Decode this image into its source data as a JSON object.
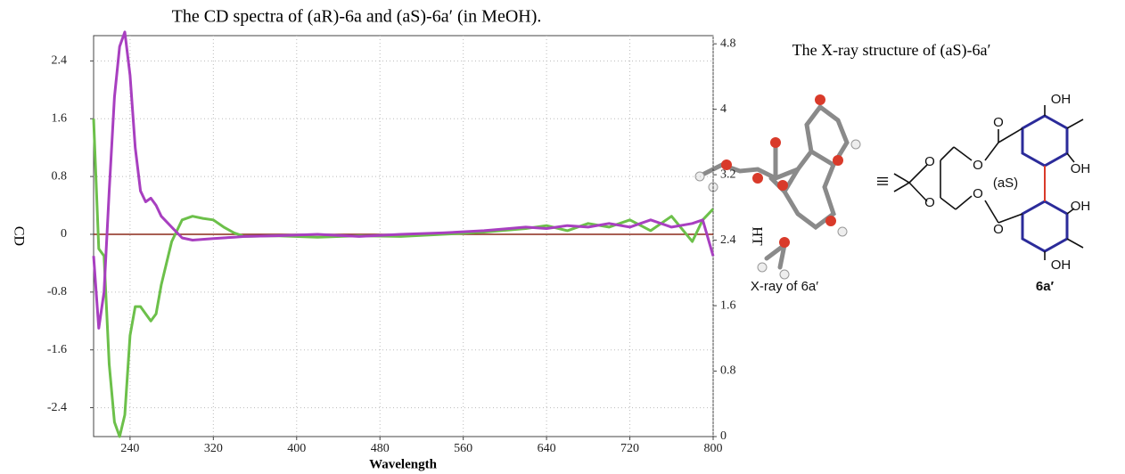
{
  "chart_data": {
    "type": "line",
    "title": "The CD spectra of (aR)-6a and (aS)-6a′ (in MeOH).",
    "x_label": "Wavelength",
    "y_label": "CD",
    "y2_label": "HT",
    "x": [
      205,
      210,
      215,
      220,
      225,
      230,
      235,
      240,
      245,
      250,
      255,
      260,
      265,
      270,
      280,
      290,
      300,
      310,
      320,
      330,
      340,
      350,
      380,
      420,
      460,
      500,
      540,
      580,
      620,
      640,
      660,
      680,
      700,
      720,
      740,
      760,
      780,
      790,
      800
    ],
    "series": [
      {
        "color": "#6cc04a",
        "values": [
          1.6,
          -0.2,
          -0.3,
          -1.8,
          -2.6,
          -2.8,
          -2.5,
          -1.4,
          -1.0,
          -1.0,
          -1.1,
          -1.2,
          -1.1,
          -0.7,
          -0.1,
          0.2,
          0.25,
          0.22,
          0.2,
          0.1,
          0.02,
          -0.03,
          -0.02,
          -0.04,
          -0.02,
          -0.03,
          0.0,
          0.03,
          0.08,
          0.12,
          0.05,
          0.15,
          0.1,
          0.2,
          0.05,
          0.25,
          -0.1,
          0.2,
          0.35
        ]
      },
      {
        "color": "#a83fc0",
        "values": [
          -0.3,
          -1.3,
          -0.8,
          0.6,
          1.9,
          2.6,
          2.8,
          2.2,
          1.2,
          0.6,
          0.45,
          0.5,
          0.4,
          0.25,
          0.1,
          -0.05,
          -0.08,
          -0.07,
          -0.06,
          -0.05,
          -0.04,
          -0.03,
          -0.02,
          0.0,
          -0.03,
          0.0,
          0.02,
          0.05,
          0.1,
          0.08,
          0.12,
          0.1,
          0.15,
          0.1,
          0.2,
          0.1,
          0.15,
          0.2,
          -0.3
        ]
      }
    ],
    "xlim": [
      205,
      800
    ],
    "xticks": [
      240,
      320,
      400,
      480,
      560,
      640,
      720,
      800
    ],
    "ylim": [
      -2.8,
      2.75
    ],
    "yticks": [
      -2.4,
      -1.6,
      -0.8,
      0,
      0.8,
      1.6,
      2.4
    ],
    "y2lim": [
      0,
      4.9
    ],
    "y2ticks": [
      0,
      0.8,
      1.6,
      2.4,
      3.2,
      4,
      4.8
    ],
    "grid": true,
    "zero_line_color": "#8b2a1a"
  },
  "structure": {
    "title": "The X-ray structure of (aS)-6a′",
    "xray_label": "X-ray of 6a′",
    "compound_label": "6a′",
    "equiv": "≡",
    "configuration": "(aS)",
    "atoms": [
      "OH",
      "OH",
      "OH",
      "OH",
      "O",
      "O",
      "O",
      "O",
      "O",
      "O"
    ]
  }
}
